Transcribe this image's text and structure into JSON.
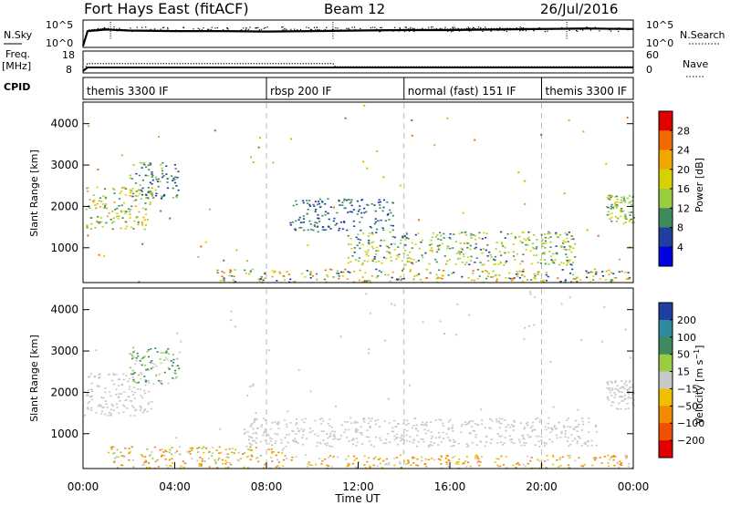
{
  "header": {
    "station": "Fort Hays East (fitACF)",
    "beam": "Beam 12",
    "date": "26/Jul/2016"
  },
  "panel_labels": {
    "nsky": "N.Sky",
    "freq": "Freq.",
    "freq_unit": "[MHz]",
    "cpid": "CPID",
    "nsearch": "N.Search",
    "nave": "Nave"
  },
  "chart_data": [
    {
      "type": "line",
      "name": "noise-panel",
      "left_ticks": [
        "10^5",
        "10^0"
      ],
      "right_ticks": [
        "10^5",
        "10^0"
      ],
      "left_label": "N.Sky",
      "right_label": "N.Search",
      "scale": "log",
      "ylim": [
        1,
        100000
      ],
      "series": [
        {
          "name": "N.Sky",
          "x_hours": [
            0,
            0.2,
            1,
            2,
            4,
            6,
            8,
            10,
            12,
            14,
            16,
            18,
            20,
            22,
            24
          ],
          "y_log10": [
            0.3,
            3.2,
            3.5,
            3.3,
            3.2,
            3.2,
            3.1,
            3.2,
            3.3,
            3.4,
            3.4,
            3.5,
            3.6,
            3.7,
            3.6
          ]
        },
        {
          "name": "N.Search",
          "x_hours": [
            0,
            0.2,
            1,
            2,
            4,
            6,
            8,
            10,
            12,
            14,
            16,
            18,
            20,
            22,
            24
          ],
          "y_log10": [
            0.5,
            3.4,
            3.7,
            3.4,
            3.3,
            3.3,
            3.2,
            3.3,
            3.4,
            3.5,
            3.6,
            3.7,
            3.7,
            3.8,
            3.7
          ]
        }
      ]
    },
    {
      "type": "line",
      "name": "freq-panel",
      "left_ticks": [
        "18",
        "8"
      ],
      "right_ticks": [
        "60",
        "0"
      ],
      "series": [
        {
          "name": "Freq.",
          "x_hours": [
            0,
            0.2,
            24
          ],
          "y": [
            8,
            10.5,
            10.5
          ]
        },
        {
          "name": "Nave",
          "x_hours": [
            0,
            0.2,
            10.9,
            11.0,
            24
          ],
          "y": [
            0,
            25,
            25,
            16,
            16
          ]
        }
      ]
    },
    {
      "type": "table",
      "name": "cpid-panel",
      "segments": [
        {
          "label": "themis 3300 IF",
          "start_hour": 0,
          "end_hour": 8
        },
        {
          "label": "rbsp 200 IF",
          "start_hour": 8,
          "end_hour": 14
        },
        {
          "label": "normal (fast) 151 IF",
          "start_hour": 14,
          "end_hour": 20
        },
        {
          "label": "themis 3300 IF",
          "start_hour": 20,
          "end_hour": 24
        }
      ]
    },
    {
      "type": "heatmap",
      "name": "power",
      "ylabel": "Slant Range [km]",
      "yticks": [
        1000,
        2000,
        3000,
        4000
      ],
      "ylim": [
        180,
        4500
      ],
      "xlim_hours": [
        0,
        24
      ],
      "colorbar": {
        "label": "Power [dB]",
        "ticks": [
          "28",
          "24",
          "20",
          "16",
          "12",
          "8",
          "4"
        ],
        "colors": [
          "#e00000",
          "#f06a00",
          "#f0a800",
          "#d8d000",
          "#9acc40",
          "#3f8a5c",
          "#1e3fa0",
          "#0000e0"
        ]
      },
      "regions": [
        {
          "t": [
            0.1,
            3.0
          ],
          "r": [
            1450,
            2500
          ],
          "value_range": [
            8,
            24
          ]
        },
        {
          "t": [
            2.0,
            4.2
          ],
          "r": [
            2200,
            3100
          ],
          "value_range": [
            4,
            14
          ]
        },
        {
          "t": [
            5.8,
            24.0
          ],
          "r": [
            180,
            500
          ],
          "value_range": [
            4,
            28
          ]
        },
        {
          "t": [
            11.5,
            21.5
          ],
          "r": [
            600,
            1400
          ],
          "value_range": [
            6,
            20
          ]
        },
        {
          "t": [
            9.0,
            13.5
          ],
          "r": [
            1400,
            2200
          ],
          "value_range": [
            4,
            12
          ]
        },
        {
          "t": [
            22.8,
            24.0
          ],
          "r": [
            1600,
            2300
          ],
          "value_range": [
            8,
            20
          ]
        }
      ]
    },
    {
      "type": "heatmap",
      "name": "velocity",
      "ylabel": "Slant Range [km]",
      "xlabel": "Time UT",
      "yticks": [
        1000,
        2000,
        3000,
        4000
      ],
      "ylim": [
        180,
        4500
      ],
      "xlim_hours": [
        0,
        24
      ],
      "xticks": [
        "00:00",
        "04:00",
        "08:00",
        "12:00",
        "16:00",
        "20:00",
        "00:00"
      ],
      "colorbar": {
        "label": "Velocity [m s^-1]",
        "ticks": [
          "200",
          "100",
          "50",
          "15",
          "−15",
          "−50",
          "−100",
          "−200"
        ],
        "colors": [
          "#1e3fa0",
          "#2f8aa0",
          "#3f8a5c",
          "#9acc40",
          "#c8c8c8",
          "#f0c000",
          "#f08a00",
          "#f05000",
          "#e00000"
        ]
      },
      "regions": [
        {
          "t": [
            0.1,
            3.0
          ],
          "r": [
            1450,
            2500
          ],
          "value_range": [
            -15,
            15
          ]
        },
        {
          "t": [
            2.0,
            4.2
          ],
          "r": [
            2200,
            3100
          ],
          "value_range": [
            -15,
            100
          ]
        },
        {
          "t": [
            1.0,
            9.0
          ],
          "r": [
            180,
            700
          ],
          "value_range": [
            -100,
            50
          ]
        },
        {
          "t": [
            9.0,
            24.0
          ],
          "r": [
            180,
            500
          ],
          "value_range": [
            -100,
            15
          ]
        },
        {
          "t": [
            7.0,
            22.5
          ],
          "r": [
            700,
            1400
          ],
          "value_range": [
            -15,
            15
          ]
        },
        {
          "t": [
            22.8,
            24.0
          ],
          "r": [
            1600,
            2300
          ],
          "value_range": [
            -15,
            15
          ]
        }
      ]
    }
  ]
}
